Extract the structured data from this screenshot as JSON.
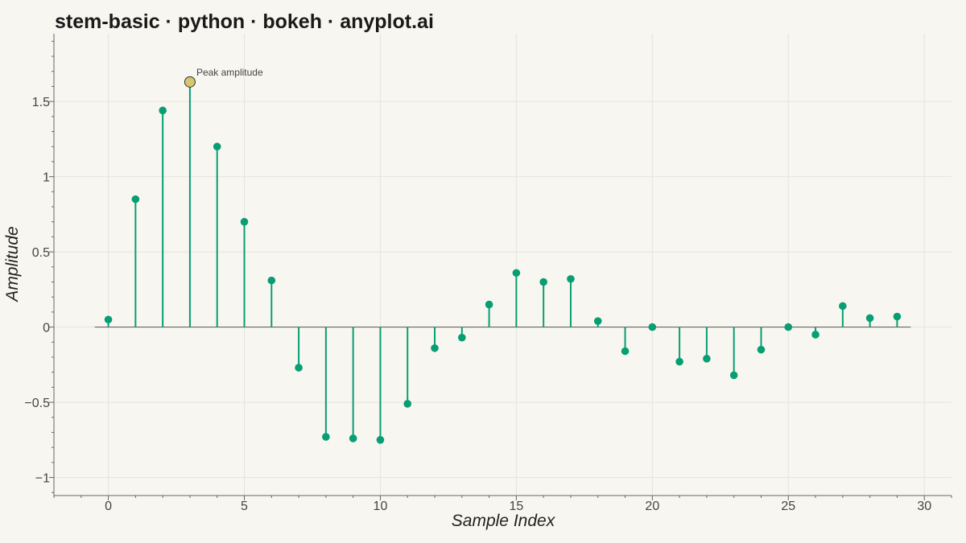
{
  "chart_data": {
    "type": "stem",
    "title": "stem-basic · python · bokeh · anyplot.ai",
    "xlabel": "Sample Index",
    "ylabel": "Amplitude",
    "xlim": [
      -2,
      31
    ],
    "ylim": [
      -1.12,
      1.95
    ],
    "x_ticks": [
      0,
      5,
      10,
      15,
      20,
      25,
      30
    ],
    "x_tick_labels": [
      "0",
      "5",
      "10",
      "15",
      "20",
      "25",
      "30"
    ],
    "y_ticks": [
      -1,
      -0.5,
      0,
      0.5,
      1,
      1.5
    ],
    "y_tick_labels": [
      "−1",
      "−0.5",
      "0",
      "0.5",
      "1",
      "1.5"
    ],
    "grid": true,
    "baseline": 0,
    "x": [
      0,
      1,
      2,
      3,
      4,
      5,
      6,
      7,
      8,
      9,
      10,
      11,
      12,
      13,
      14,
      15,
      16,
      17,
      18,
      19,
      20,
      21,
      22,
      23,
      24,
      25,
      26,
      27,
      28,
      29
    ],
    "values": [
      0.05,
      0.85,
      1.44,
      1.63,
      1.2,
      0.7,
      0.31,
      -0.27,
      -0.73,
      -0.74,
      -0.75,
      -0.51,
      -0.14,
      -0.07,
      0.15,
      0.36,
      0.3,
      0.32,
      0.04,
      -0.16,
      0.0,
      -0.23,
      -0.21,
      -0.32,
      -0.15,
      0.0,
      -0.05,
      0.14,
      0.06,
      0.07
    ],
    "highlight": {
      "index": 3,
      "label": "Peak amplitude"
    },
    "colors": {
      "stem": "#079e74",
      "marker": "#079e74",
      "highlight_fill": "#d7c66d",
      "highlight_stroke": "#333333",
      "baseline": "#555555",
      "grid": "#e6e3dc",
      "axis": "#666666",
      "background": "#f8f6f0"
    }
  }
}
